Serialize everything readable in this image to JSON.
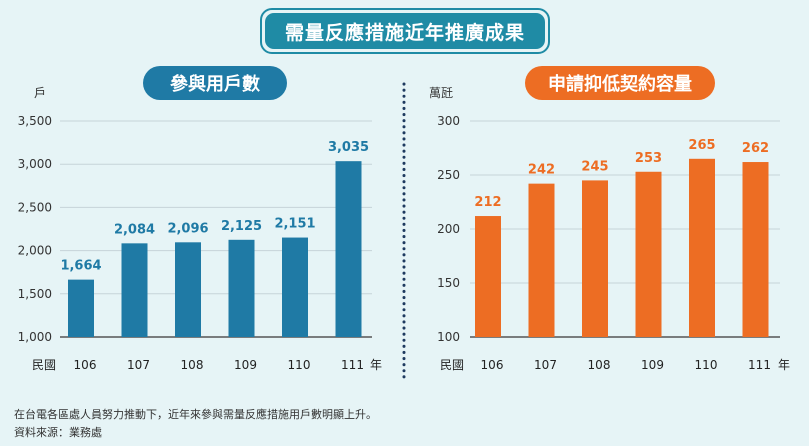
{
  "title": "需量反應措施近年推廣成果",
  "chart_data": [
    {
      "type": "bar",
      "title": "參與用戶數",
      "ylabel": "戶",
      "xlabel": "年",
      "x_prefix": "民國",
      "categories": [
        "106",
        "107",
        "108",
        "109",
        "110",
        "111"
      ],
      "values": [
        1664,
        2084,
        2096,
        2125,
        2151,
        3035
      ],
      "value_labels": [
        "1,664",
        "2,084",
        "2,096",
        "2,125",
        "2,151",
        "3,035"
      ],
      "ylim": [
        1000,
        3500
      ],
      "yticks": [
        1000,
        1500,
        2000,
        2500,
        3000,
        3500
      ],
      "ytick_labels": [
        "1,000",
        "1,500",
        "2,000",
        "2,500",
        "3,000",
        "3,500"
      ],
      "color": "#1f7aa5",
      "label_color": "#1f7aa5",
      "grid": true
    },
    {
      "type": "bar",
      "title": "申請抑低契約容量",
      "ylabel": "萬瓩",
      "xlabel": "年",
      "x_prefix": "民國",
      "categories": [
        "106",
        "107",
        "108",
        "109",
        "110",
        "111"
      ],
      "values": [
        212,
        242,
        245,
        253,
        265,
        262
      ],
      "value_labels": [
        "212",
        "242",
        "245",
        "253",
        "265",
        "262"
      ],
      "ylim": [
        100,
        300
      ],
      "yticks": [
        100,
        150,
        200,
        250,
        300
      ],
      "ytick_labels": [
        "100",
        "150",
        "200",
        "250",
        "300"
      ],
      "color": "#ed6d23",
      "label_color": "#ed6d23",
      "grid": true
    }
  ],
  "footnotes": [
    "在台電各區處人員努力推動下，近年來參與需量反應措施用戶數明顯上升。",
    "資料來源：業務處"
  ],
  "colors": {
    "divider": "#1e3a5f",
    "axis": "#555555",
    "grid": "#c6d3d8"
  }
}
